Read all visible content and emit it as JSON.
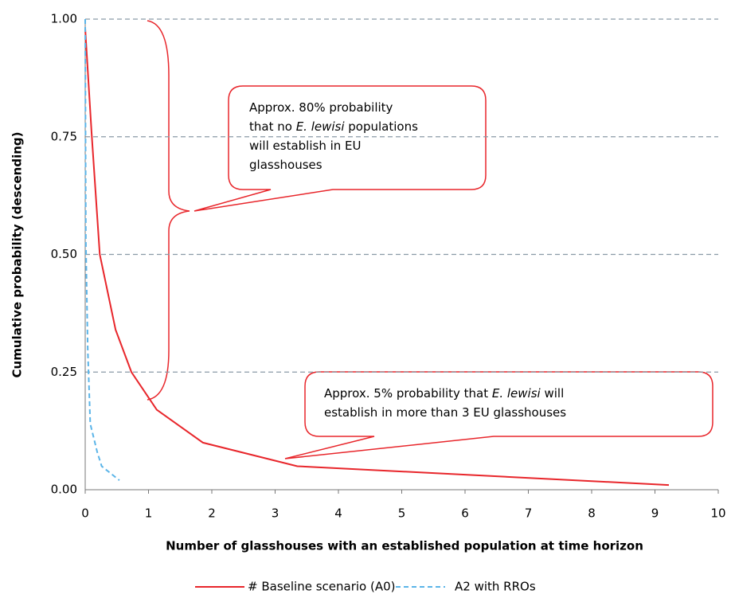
{
  "chart_data": {
    "type": "line",
    "xlabel": "Number of glasshouses with an established population at time horizon",
    "ylabel": "Cumulative probability (descending)",
    "xlim": [
      0,
      10
    ],
    "ylim": [
      0,
      1
    ],
    "xticks": [
      0,
      1,
      2,
      3,
      4,
      5,
      6,
      7,
      8,
      9,
      10
    ],
    "yticks": [
      {
        "value": 0,
        "label": "0.00"
      },
      {
        "value": 0.25,
        "label": "0.25"
      },
      {
        "value": 0.5,
        "label": "0.50"
      },
      {
        "value": 0.75,
        "label": "0.75"
      },
      {
        "value": 1,
        "label": "1.00"
      }
    ],
    "grid": true,
    "legend": "bottom",
    "series": [
      {
        "name": "# Baseline scenario (A0)",
        "color": "#e8262b",
        "style": "solid",
        "x": [
          0,
          0.1,
          0.23,
          0.48,
          0.73,
          1.13,
          1.86,
          3.35,
          9.22
        ],
        "values": [
          0.98,
          0.76,
          0.5,
          0.34,
          0.25,
          0.17,
          0.1,
          0.05,
          0.01
        ]
      },
      {
        "name": "A2 with RROs",
        "color": "#5ab4e8",
        "style": "dashed",
        "x": [
          0,
          0.01,
          0.04,
          0.08,
          0.19,
          0.26,
          0.54
        ],
        "values": [
          1,
          0.53,
          0.3,
          0.14,
          0.08,
          0.05,
          0.02
        ]
      }
    ],
    "annotations": [
      {
        "lines": [
          [
            {
              "text": "Approx. 80% probability"
            }
          ],
          [
            {
              "text": "that no "
            },
            {
              "text": "E. lewisi",
              "italic": true
            },
            {
              "text": " populations"
            }
          ],
          [
            {
              "text": "will establish in EU"
            }
          ],
          [
            {
              "text": "glasshouses"
            }
          ]
        ]
      },
      {
        "lines": [
          [
            {
              "text": "Approx. 5% probability that "
            },
            {
              "text": "E. lewisi",
              "italic": true
            },
            {
              "text": " will"
            }
          ],
          [
            {
              "text": "establish in more than 3 EU glasshouses"
            }
          ]
        ]
      }
    ]
  }
}
